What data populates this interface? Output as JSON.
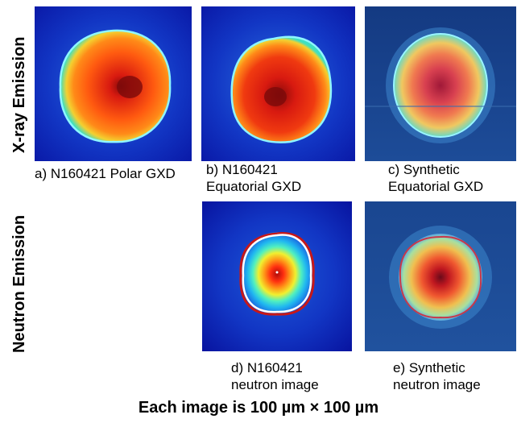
{
  "row_labels": {
    "xray": "X-ray Emission",
    "neutron": "Neutron Emission"
  },
  "panels": {
    "a": {
      "caption": "a) N160421 Polar GXD"
    },
    "b": {
      "caption_line1": "b) N160421",
      "caption_line2": "Equatorial GXD"
    },
    "c": {
      "caption_line1": "c) Synthetic",
      "caption_line2": "Equatorial GXD"
    },
    "d": {
      "caption_line1": "d) N160421",
      "caption_line2": "neutron image"
    },
    "e": {
      "caption_line1": "e) Synthetic",
      "caption_line2": "neutron image"
    }
  },
  "footer": "Each image is 100 µm × 100 µm",
  "colors": {
    "background_dark_blue": "#0a1fb0",
    "background_mid_blue": "#1f5fd6",
    "contour_cyan": "#7ff3ff",
    "contour_white": "#ffffff",
    "contour_red": "#b81818",
    "core_red": "#e02010",
    "core_dark": "#7a0a0a"
  }
}
